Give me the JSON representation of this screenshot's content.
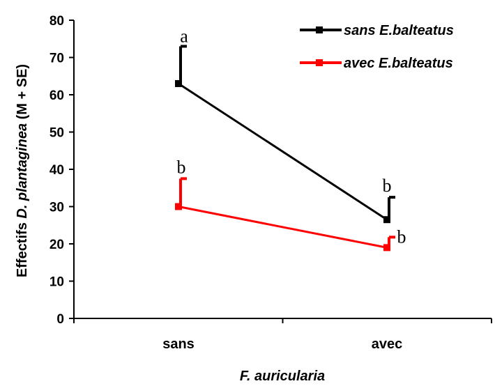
{
  "chart_data": {
    "type": "line",
    "categories": [
      "sans",
      "avec"
    ],
    "xlabel": "F. auricularia",
    "ylabel_prefix": "Effectifs ",
    "ylabel_species": "D. plantaginea",
    "ylabel_suffix": " (M + SE)",
    "ylim": [
      0,
      80
    ],
    "yticks": [
      0,
      10,
      20,
      30,
      40,
      50,
      60,
      70,
      80
    ],
    "grid": false,
    "legend_position": "top-right",
    "series": [
      {
        "name": "sans E.balteatus",
        "color": "#000000",
        "values": [
          63,
          26.5
        ],
        "errors": [
          10,
          6
        ],
        "letters": [
          "a",
          "b"
        ]
      },
      {
        "name": "avec E.balteatus",
        "color": "#ff0000",
        "values": [
          30,
          19
        ],
        "errors": [
          7.5,
          2.8
        ],
        "letters": [
          "b",
          "b"
        ]
      }
    ]
  }
}
